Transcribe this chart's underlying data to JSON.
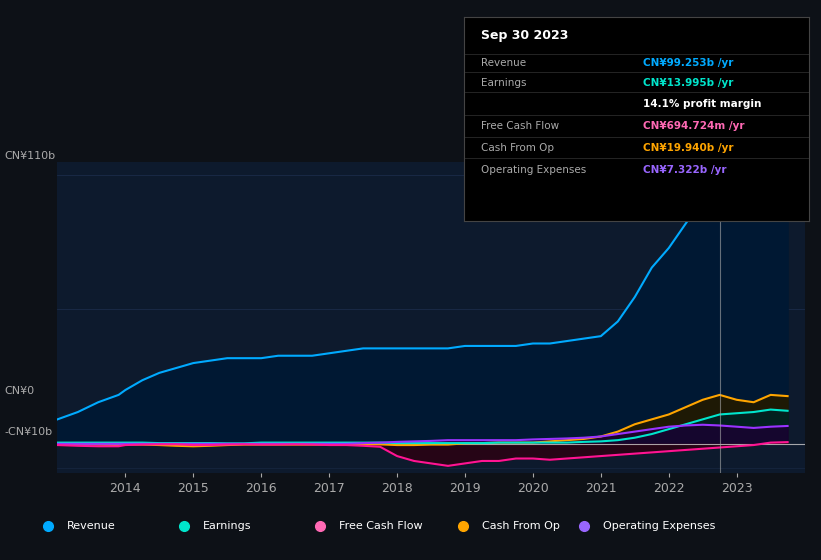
{
  "bg_color": "#0d1117",
  "plot_bg_color": "#0d1a2d",
  "grid_color": "#1e3050",
  "title_date": "Sep 30 2023",
  "tooltip": {
    "Revenue": {
      "value": "CN¥99.253b /yr",
      "color": "#00aaff"
    },
    "Earnings": {
      "value": "CN¥13.995b /yr",
      "color": "#00e5cc"
    },
    "profit_margin": "14.1% profit margin",
    "Free Cash Flow": {
      "value": "CN¥694.724m /yr",
      "color": "#ff69b4"
    },
    "Cash From Op": {
      "value": "CN¥19.940b /yr",
      "color": "#ffa500"
    },
    "Operating Expenses": {
      "value": "CN¥7.322b /yr",
      "color": "#9966ff"
    }
  },
  "ylabel_top": "CN¥110b",
  "ylabel_zero": "CN¥0",
  "ylabel_neg": "-CN¥10b",
  "ylim": [
    -12,
    115
  ],
  "legend": [
    {
      "label": "Revenue",
      "color": "#00aaff"
    },
    {
      "label": "Earnings",
      "color": "#00e5cc"
    },
    {
      "label": "Free Cash Flow",
      "color": "#ff69b4"
    },
    {
      "label": "Cash From Op",
      "color": "#ffa500"
    },
    {
      "label": "Operating Expenses",
      "color": "#9966ff"
    }
  ],
  "year_start": 2013.0,
  "year_end": 2024.0,
  "xticks": [
    2014,
    2015,
    2016,
    2017,
    2018,
    2019,
    2020,
    2021,
    2022,
    2023
  ],
  "series": {
    "Revenue": {
      "x": [
        2013.0,
        2013.3,
        2013.6,
        2013.9,
        2014.0,
        2014.25,
        2014.5,
        2014.75,
        2015.0,
        2015.25,
        2015.5,
        2015.75,
        2016.0,
        2016.25,
        2016.5,
        2016.75,
        2017.0,
        2017.25,
        2017.5,
        2017.75,
        2018.0,
        2018.25,
        2018.5,
        2018.75,
        2019.0,
        2019.25,
        2019.5,
        2019.75,
        2020.0,
        2020.25,
        2020.5,
        2020.75,
        2021.0,
        2021.25,
        2021.5,
        2021.75,
        2022.0,
        2022.25,
        2022.5,
        2022.75,
        2023.0,
        2023.25,
        2023.5,
        2023.75
      ],
      "y": [
        10,
        13,
        17,
        20,
        22,
        26,
        29,
        31,
        33,
        34,
        35,
        35,
        35,
        36,
        36,
        36,
        37,
        38,
        39,
        39,
        39,
        39,
        39,
        39,
        40,
        40,
        40,
        40,
        41,
        41,
        42,
        43,
        44,
        50,
        60,
        72,
        80,
        90,
        100,
        107,
        100,
        95,
        99,
        99
      ]
    },
    "Earnings": {
      "x": [
        2013.0,
        2013.3,
        2013.6,
        2013.9,
        2014.0,
        2014.25,
        2014.5,
        2014.75,
        2015.0,
        2015.25,
        2015.5,
        2015.75,
        2016.0,
        2016.25,
        2016.5,
        2016.75,
        2017.0,
        2017.25,
        2017.5,
        2017.75,
        2018.0,
        2018.25,
        2018.5,
        2018.75,
        2019.0,
        2019.25,
        2019.5,
        2019.75,
        2020.0,
        2020.25,
        2020.5,
        2020.75,
        2021.0,
        2021.25,
        2021.5,
        2021.75,
        2022.0,
        2022.25,
        2022.5,
        2022.75,
        2023.0,
        2023.25,
        2023.5,
        2023.75
      ],
      "y": [
        0.5,
        0.5,
        0.5,
        0.5,
        0.5,
        0.5,
        0.3,
        0.3,
        0.3,
        0.3,
        0.2,
        0.2,
        0.5,
        0.5,
        0.5,
        0.5,
        0.5,
        0.5,
        0.5,
        0.5,
        0.3,
        0.3,
        0.3,
        0.3,
        0.3,
        0.3,
        0.5,
        0.5,
        0.5,
        0.5,
        0.5,
        0.8,
        1.0,
        1.5,
        2.5,
        4.0,
        6.0,
        8.0,
        10.0,
        12.0,
        12.5,
        13.0,
        14.0,
        13.5
      ]
    },
    "Free Cash Flow": {
      "x": [
        2013.0,
        2013.3,
        2013.6,
        2013.9,
        2014.0,
        2014.25,
        2014.5,
        2014.75,
        2015.0,
        2015.25,
        2015.5,
        2015.75,
        2016.0,
        2016.25,
        2016.5,
        2016.75,
        2017.0,
        2017.25,
        2017.5,
        2017.75,
        2018.0,
        2018.25,
        2018.5,
        2018.75,
        2019.0,
        2019.25,
        2019.5,
        2019.75,
        2020.0,
        2020.25,
        2020.5,
        2020.75,
        2021.0,
        2021.25,
        2021.5,
        2021.75,
        2022.0,
        2022.25,
        2022.5,
        2022.75,
        2023.0,
        2023.25,
        2023.5,
        2023.75
      ],
      "y": [
        -0.5,
        -0.8,
        -1.0,
        -1.0,
        -0.5,
        -0.3,
        -0.2,
        -0.2,
        -0.5,
        -0.5,
        -0.3,
        -0.2,
        -0.3,
        -0.3,
        -0.2,
        -0.3,
        -0.5,
        -0.5,
        -0.8,
        -1.2,
        -5.0,
        -7.0,
        -8.0,
        -9.0,
        -8.0,
        -7.0,
        -7.0,
        -6.0,
        -6.0,
        -6.5,
        -6.0,
        -5.5,
        -5.0,
        -4.5,
        -4.0,
        -3.5,
        -3.0,
        -2.5,
        -2.0,
        -1.5,
        -1.0,
        -0.5,
        0.5,
        0.7
      ]
    },
    "Cash From Op": {
      "x": [
        2013.0,
        2013.3,
        2013.6,
        2013.9,
        2014.0,
        2014.25,
        2014.5,
        2014.75,
        2015.0,
        2015.25,
        2015.5,
        2015.75,
        2016.0,
        2016.25,
        2016.5,
        2016.75,
        2017.0,
        2017.25,
        2017.5,
        2017.75,
        2018.0,
        2018.25,
        2018.5,
        2018.75,
        2019.0,
        2019.25,
        2019.5,
        2019.75,
        2020.0,
        2020.25,
        2020.5,
        2020.75,
        2021.0,
        2021.25,
        2021.5,
        2021.75,
        2022.0,
        2022.25,
        2022.5,
        2022.75,
        2023.0,
        2023.25,
        2023.5,
        2023.75
      ],
      "y": [
        0.3,
        0.0,
        -0.3,
        -0.5,
        -0.3,
        -0.3,
        -0.5,
        -0.8,
        -1.0,
        -0.8,
        -0.5,
        -0.3,
        -0.3,
        -0.3,
        -0.3,
        -0.3,
        -0.3,
        -0.2,
        -0.2,
        -0.2,
        -0.5,
        -0.5,
        -0.3,
        -0.3,
        0.2,
        0.3,
        0.5,
        0.5,
        0.5,
        1.0,
        1.5,
        2.0,
        3.0,
        5.0,
        8.0,
        10.0,
        12.0,
        15.0,
        18.0,
        20.0,
        18.0,
        17.0,
        20.0,
        19.5
      ]
    },
    "Operating Expenses": {
      "x": [
        2013.0,
        2013.3,
        2013.6,
        2013.9,
        2014.0,
        2014.25,
        2014.5,
        2014.75,
        2015.0,
        2015.25,
        2015.5,
        2015.75,
        2016.0,
        2016.25,
        2016.5,
        2016.75,
        2017.0,
        2017.25,
        2017.5,
        2017.75,
        2018.0,
        2018.25,
        2018.5,
        2018.75,
        2019.0,
        2019.25,
        2019.5,
        2019.75,
        2020.0,
        2020.25,
        2020.5,
        2020.75,
        2021.0,
        2021.25,
        2021.5,
        2021.75,
        2022.0,
        2022.25,
        2022.5,
        2022.75,
        2023.0,
        2023.25,
        2023.5,
        2023.75
      ],
      "y": [
        0.0,
        0.0,
        0.0,
        0.0,
        0.0,
        0.0,
        0.0,
        0.0,
        0.0,
        0.0,
        0.0,
        0.0,
        0.0,
        0.0,
        0.0,
        0.0,
        0.0,
        0.0,
        0.3,
        0.5,
        0.8,
        1.0,
        1.2,
        1.5,
        1.5,
        1.5,
        1.5,
        1.5,
        1.8,
        2.0,
        2.2,
        2.5,
        3.0,
        4.0,
        5.0,
        6.0,
        7.0,
        7.5,
        7.8,
        7.5,
        7.0,
        6.5,
        7.0,
        7.3
      ]
    }
  },
  "vertical_line_x": 2022.75,
  "line_colors": {
    "Revenue": "#00aaff",
    "Earnings": "#00e5cc",
    "Free Cash Flow": "#ff1493",
    "Cash From Op": "#ffa500",
    "Operating Expenses": "#9933ff"
  },
  "tooltip_rows": [
    {
      "label": "Revenue",
      "value": "CN¥99.253b /yr",
      "color": "#00aaff"
    },
    {
      "label": "Earnings",
      "value": "CN¥13.995b /yr",
      "color": "#00e5cc"
    },
    {
      "label": "",
      "value": "14.1% profit margin",
      "color": "#ffffff"
    },
    {
      "label": "Free Cash Flow",
      "value": "CN¥694.724m /yr",
      "color": "#ff69b4"
    },
    {
      "label": "Cash From Op",
      "value": "CN¥19.940b /yr",
      "color": "#ffa500"
    },
    {
      "label": "Operating Expenses",
      "value": "CN¥7.322b /yr",
      "color": "#9966ff"
    }
  ]
}
